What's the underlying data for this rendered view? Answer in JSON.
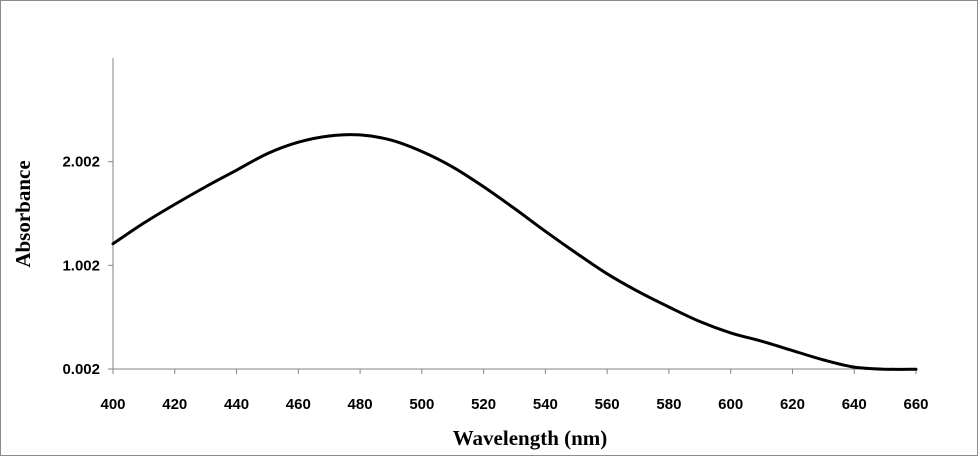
{
  "chart_data": {
    "type": "line",
    "title": "",
    "xlabel": "Wavelength (nm)",
    "ylabel": "Absorbance",
    "xlim": [
      400,
      660
    ],
    "ylim": [
      0.002,
      3.002
    ],
    "x_ticks": [
      400,
      420,
      440,
      460,
      480,
      500,
      520,
      540,
      560,
      580,
      600,
      620,
      640,
      660
    ],
    "x_tick_labels": [
      "400",
      "420",
      "440",
      "460",
      "480",
      "500",
      "520",
      "540",
      "560",
      "580",
      "600",
      "620",
      "640",
      "660"
    ],
    "y_ticks": [
      0.002,
      1.002,
      2.002
    ],
    "y_tick_labels": [
      "0.002",
      "1.002",
      "2.002"
    ],
    "grid": false,
    "legend": "none",
    "line_color": "#000000",
    "series": [
      {
        "x": [
          400,
          410,
          420,
          430,
          440,
          450,
          460,
          470,
          480,
          490,
          500,
          510,
          520,
          530,
          540,
          550,
          560,
          570,
          580,
          590,
          600,
          610,
          620,
          630,
          640,
          650,
          660
        ],
        "values": [
          1.21,
          1.41,
          1.59,
          1.76,
          1.92,
          2.08,
          2.19,
          2.25,
          2.26,
          2.21,
          2.1,
          1.95,
          1.76,
          1.55,
          1.33,
          1.12,
          0.92,
          0.75,
          0.6,
          0.46,
          0.35,
          0.27,
          0.18,
          0.09,
          0.02,
          0.0,
          0.0
        ]
      }
    ]
  }
}
